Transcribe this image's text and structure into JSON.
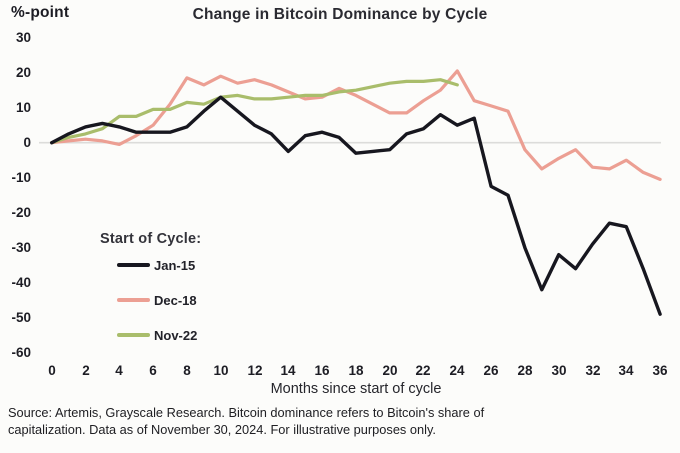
{
  "header": {
    "title": "Change in Bitcoin Dominance by Cycle",
    "y_unit_label": "%-point"
  },
  "legend": {
    "heading": "Start of Cycle:",
    "items": [
      {
        "label": "Jan-15",
        "color": "#17171f"
      },
      {
        "label": "Dec-18",
        "color": "#ec9f93"
      },
      {
        "label": "Nov-22",
        "color": "#a9bd6b"
      }
    ]
  },
  "source_note": {
    "lines": [
      "Source: Artemis, Grayscale Research. Bitcoin dominance refers to Bitcoin's share of",
      "capitalization. Data as of November 30, 2024. For illustrative purposes only."
    ]
  },
  "chart_data": {
    "type": "line",
    "title": "Change in Bitcoin Dominance by Cycle",
    "xlabel": "Months since start of cycle",
    "ylabel": "%-point",
    "xlim": [
      0,
      36
    ],
    "ylim": [
      -60,
      30
    ],
    "grid": false,
    "zero_line": true,
    "legend_position": "lower-left",
    "x_ticks": [
      0,
      2,
      4,
      6,
      8,
      10,
      12,
      14,
      16,
      18,
      20,
      22,
      24,
      26,
      28,
      30,
      32,
      34,
      36
    ],
    "y_ticks": [
      30,
      20,
      10,
      0,
      -10,
      -20,
      -30,
      -40,
      -50,
      -60
    ],
    "x": [
      0,
      1,
      2,
      3,
      4,
      5,
      6,
      7,
      8,
      9,
      10,
      11,
      12,
      13,
      14,
      15,
      16,
      17,
      18,
      19,
      20,
      21,
      22,
      23,
      24,
      25,
      26,
      27,
      28,
      29,
      30,
      31,
      32,
      33,
      34,
      35,
      36
    ],
    "series": [
      {
        "name": "Jan-15",
        "color": "#17171f",
        "width": 3.4,
        "values": [
          0,
          2.5,
          4.5,
          5.5,
          4.5,
          3,
          3,
          3,
          4.5,
          9,
          13,
          9,
          5,
          2.5,
          -2.5,
          2,
          3,
          1.5,
          -3,
          -2.5,
          -2,
          2.5,
          4,
          8,
          5,
          7,
          -12.5,
          -15,
          -30,
          -42,
          -32,
          -36,
          -29,
          -23,
          -24,
          -36,
          -49
        ]
      },
      {
        "name": "Dec-18",
        "color": "#ec9f93",
        "width": 3.2,
        "values": [
          0,
          0.5,
          1,
          0.5,
          -0.5,
          2,
          5,
          11,
          18.5,
          16.5,
          19,
          17,
          18,
          16.5,
          14.5,
          12.5,
          13,
          15.5,
          13.5,
          11,
          8.5,
          8.5,
          12,
          15,
          20.5,
          12,
          10.5,
          9,
          -2,
          -7.5,
          -4.5,
          -2,
          -7,
          -7.5,
          -5,
          -8.5,
          -10.5
        ]
      },
      {
        "name": "Nov-22",
        "color": "#a9bd6b",
        "width": 3.2,
        "values": [
          0,
          1.5,
          2.5,
          4,
          7.5,
          7.5,
          9.5,
          9.5,
          11.5,
          11,
          13,
          13.5,
          12.5,
          12.5,
          13,
          13.5,
          13.5,
          14.5,
          15,
          16,
          17,
          17.5,
          17.5,
          18,
          16.5
        ]
      }
    ]
  }
}
